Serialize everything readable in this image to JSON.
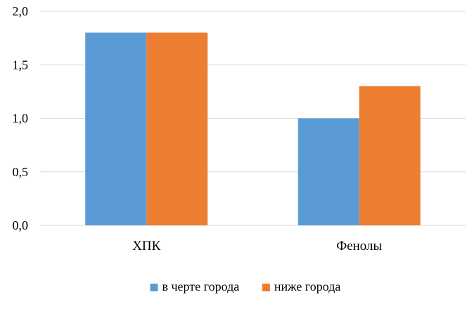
{
  "chart_data": {
    "type": "bar",
    "categories": [
      "ХПК",
      "Фенолы"
    ],
    "series": [
      {
        "name": "в черте города",
        "values": [
          1.8,
          1.0
        ],
        "color": "#5B9BD5"
      },
      {
        "name": "ниже города",
        "values": [
          1.8,
          1.3
        ],
        "color": "#ED7D31"
      }
    ],
    "ylim": [
      0,
      2
    ],
    "yticks": [
      "0,0",
      "0,5",
      "1,0",
      "1,5",
      "2,0"
    ],
    "ytick_values": [
      0,
      0.5,
      1.0,
      1.5,
      2.0
    ],
    "grid": true,
    "grid_color": "#D9D9D9",
    "legend_position": "bottom"
  }
}
